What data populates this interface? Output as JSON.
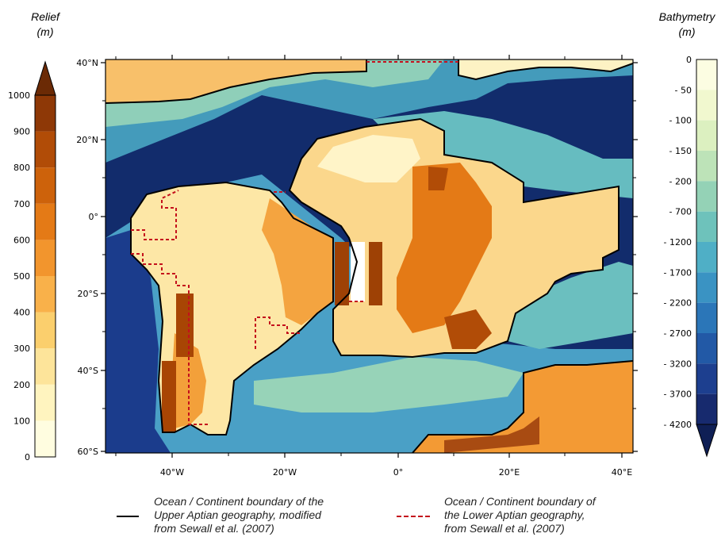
{
  "relief": {
    "title_line1": "Relief",
    "title_line2": "(m)",
    "ticks": [
      "0",
      "100",
      "200",
      "300",
      "400",
      "500",
      "600",
      "700",
      "800",
      "900",
      "1000"
    ],
    "colors": [
      "#fffde0",
      "#fff4bf",
      "#fde49a",
      "#fbcf6d",
      "#f9b14a",
      "#f2952d",
      "#e47a16",
      "#cd620b",
      "#b14c07",
      "#8e3806"
    ],
    "over_color": "#6b2a05"
  },
  "bathymetry": {
    "title_line1": "Bathymetry",
    "title_line2": "(m)",
    "ticks": [
      "0",
      "50",
      "100",
      "150",
      "200",
      "700",
      "1200",
      "1700",
      "2200",
      "2700",
      "3200",
      "3700",
      "4200"
    ],
    "colors": [
      "#fcfde2",
      "#f1f8cf",
      "#dcf0c0",
      "#bde3b8",
      "#94d2b6",
      "#6ec2bb",
      "#4fafc6",
      "#3a93c3",
      "#2b76b8",
      "#2259a6",
      "#1d3f8f",
      "#172a6e"
    ],
    "under_color": "#0f1f55"
  },
  "map": {
    "lat_labels": [
      "40°N",
      "20°N",
      "0°",
      "20°S",
      "40°S",
      "60°S"
    ],
    "lon_labels": [
      "40°W",
      "20°W",
      "0°",
      "20°E",
      "40°E"
    ],
    "deep_ocean_color": "#122c6c",
    "boundary_upper_color": "#000000",
    "boundary_lower_color": "#c4101c"
  },
  "legend": {
    "upper_line1": "Ocean / Continent boundary of the",
    "upper_line2": "Upper Aptian geography, modified",
    "upper_line3": "from Sewall et al. (2007)",
    "lower_line1": "Ocean / Continent boundary of",
    "lower_line2": "the Lower Aptian geography,",
    "lower_line3": "from Sewall et al. (2007)"
  }
}
